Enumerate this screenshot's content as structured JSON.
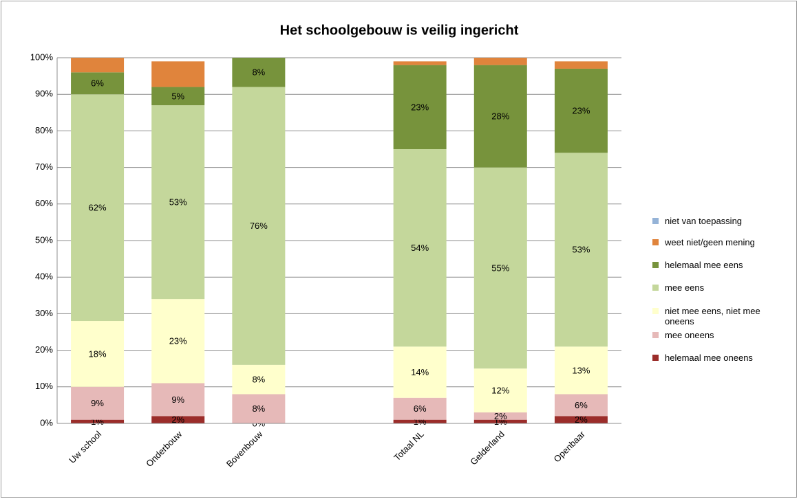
{
  "chart_data": {
    "type": "stacked_bar",
    "title": "Het schoolgebouw is veilig ingericht",
    "categories": [
      "Uw school",
      "Onderbouw",
      "Bovenbouw",
      null,
      "Totaal NL",
      "Gelderland",
      "Openbaar"
    ],
    "series": [
      {
        "name": "helemaal mee oneens",
        "color": "#9b2d2a",
        "values": [
          1,
          2,
          0,
          null,
          1,
          1,
          2
        ],
        "value_labels": [
          "1%",
          "2%",
          "0%",
          null,
          "1%",
          "1%",
          "2%"
        ]
      },
      {
        "name": "mee oneens",
        "color": "#e6b9b8",
        "values": [
          9,
          9,
          8,
          null,
          6,
          2,
          6
        ],
        "value_labels": [
          "9%",
          "9%",
          "8%",
          null,
          "6%",
          "2%",
          "6%"
        ]
      },
      {
        "name": "niet mee eens, niet mee oneens",
        "color": "#ffffcc",
        "values": [
          18,
          23,
          8,
          null,
          14,
          12,
          13
        ],
        "value_labels": [
          "18%",
          "23%",
          "8%",
          null,
          "14%",
          "12%",
          "13%"
        ]
      },
      {
        "name": "mee eens",
        "color": "#c4d79b",
        "values": [
          62,
          53,
          76,
          null,
          54,
          55,
          53
        ],
        "value_labels": [
          "62%",
          "53%",
          "76%",
          null,
          "54%",
          "55%",
          "53%"
        ]
      },
      {
        "name": "helemaal mee eens",
        "color": "#77933c",
        "values": [
          6,
          5,
          8,
          null,
          23,
          28,
          23
        ],
        "value_labels": [
          "6%",
          "5%",
          "8%",
          null,
          "23%",
          "28%",
          "23%"
        ]
      },
      {
        "name": "weet niet/geen mening",
        "color": "#e0843c",
        "values": [
          4,
          7,
          0,
          null,
          1,
          2,
          2
        ]
      },
      {
        "name": "niet van toepassing",
        "color": "#95b3d7",
        "values": [
          0,
          0,
          0,
          null,
          0,
          0,
          0
        ]
      }
    ],
    "ylim": [
      0,
      100
    ],
    "yticks": [
      {
        "value": 0,
        "label": "0%"
      },
      {
        "value": 10,
        "label": "10%"
      },
      {
        "value": 20,
        "label": "20%"
      },
      {
        "value": 30,
        "label": "30%"
      },
      {
        "value": 40,
        "label": "40%"
      },
      {
        "value": 50,
        "label": "50%"
      },
      {
        "value": 60,
        "label": "60%"
      },
      {
        "value": 70,
        "label": "70%"
      },
      {
        "value": 80,
        "label": "80%"
      },
      {
        "value": 90,
        "label": "90%"
      },
      {
        "value": 100,
        "label": "100%"
      }
    ],
    "grid": true,
    "legend": "right"
  }
}
